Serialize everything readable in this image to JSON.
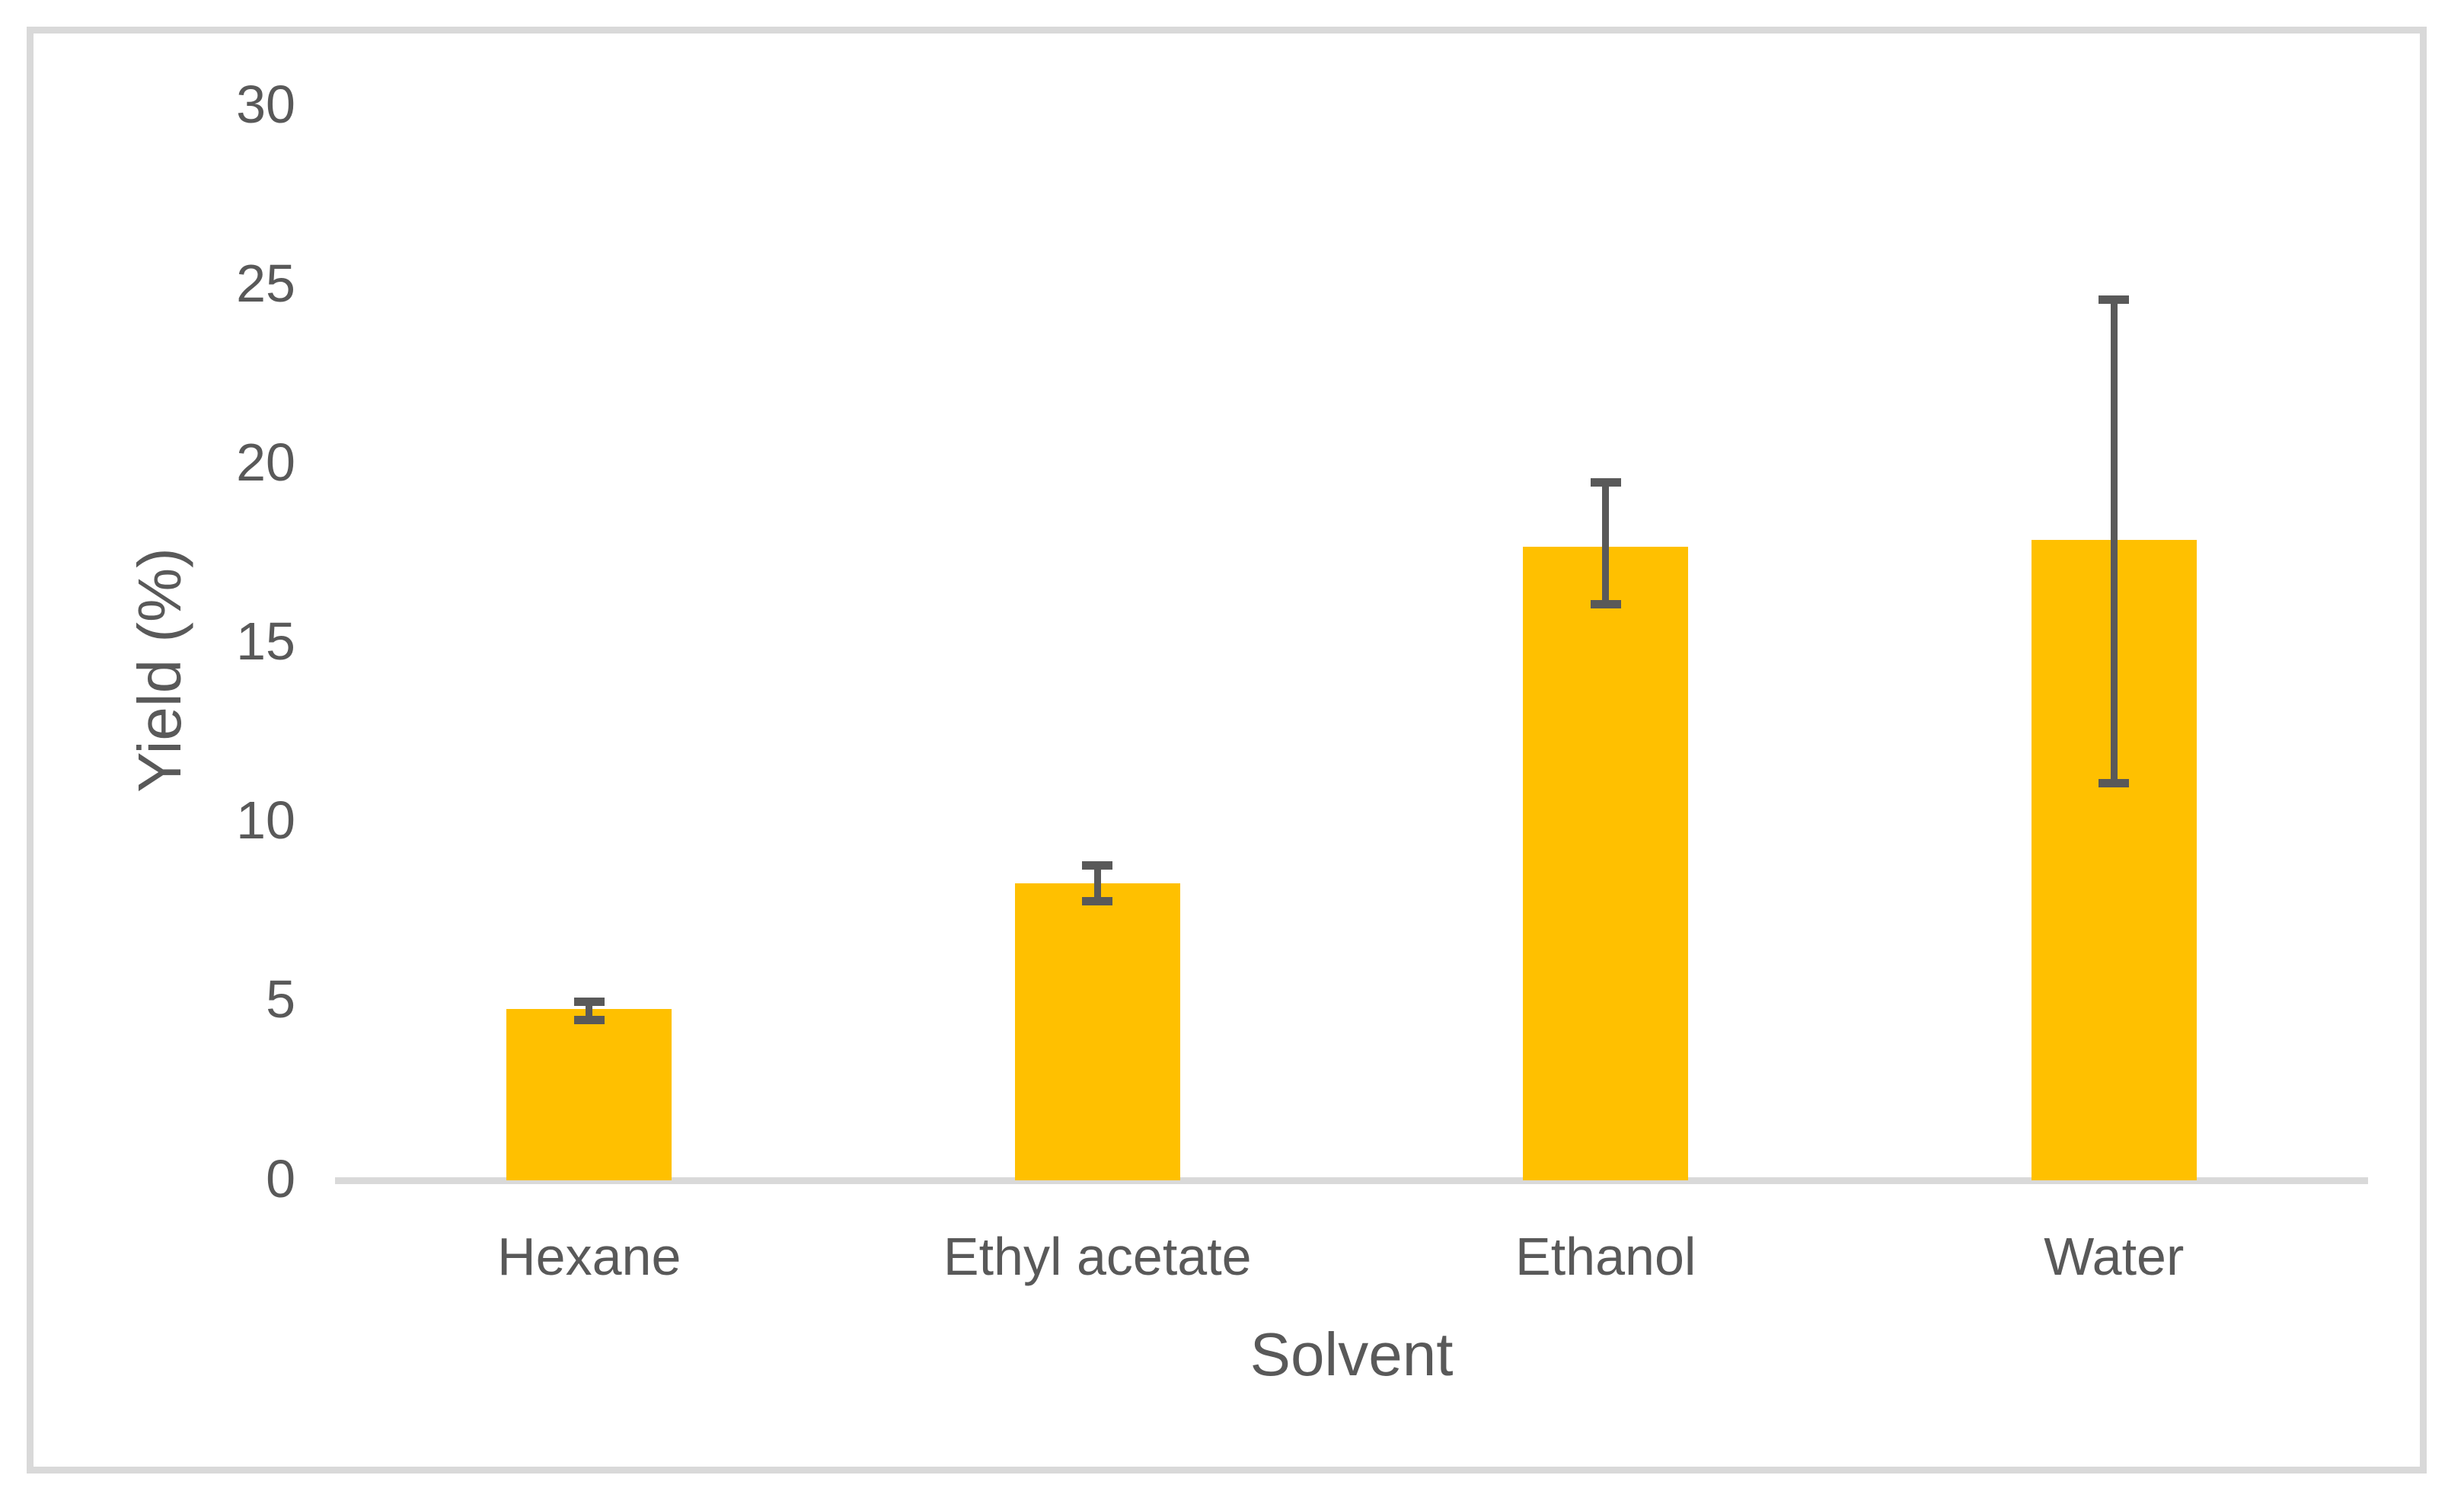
{
  "chart_data": {
    "type": "bar",
    "title": "",
    "categories": [
      "Hexane",
      "Ethyl acetate",
      "Ethanol",
      "Water"
    ],
    "values": [
      4.7,
      8.2,
      17.6,
      17.8
    ],
    "error_low": [
      4.4,
      7.7,
      16.0,
      11.0
    ],
    "error_high": [
      4.9,
      8.7,
      19.4,
      24.5
    ],
    "xlabel": "Solvent",
    "ylabel": "Yield (%)",
    "ylim": [
      0,
      30
    ],
    "yticks": [
      "0",
      "5",
      "10",
      "15",
      "20",
      "25",
      "30"
    ],
    "grid": false,
    "legend": false,
    "bar_color": "#FFC000",
    "error_bar_color": "#595959",
    "axis_line_color": "#D9D9D9",
    "text_color": "#595959",
    "frame_color": "#D9D9D9"
  }
}
